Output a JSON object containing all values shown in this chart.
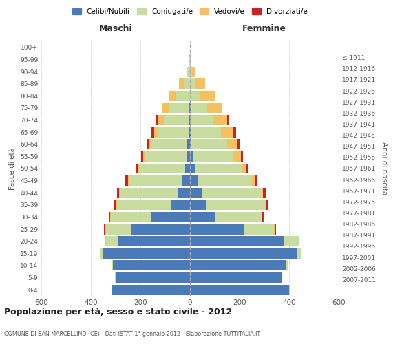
{
  "age_groups": [
    "0-4",
    "5-9",
    "10-14",
    "15-19",
    "20-24",
    "25-29",
    "30-34",
    "35-39",
    "40-44",
    "45-49",
    "50-54",
    "55-59",
    "60-64",
    "65-69",
    "70-74",
    "75-79",
    "80-84",
    "85-89",
    "90-94",
    "95-99",
    "100+"
  ],
  "birth_years": [
    "2007-2011",
    "2002-2006",
    "1997-2001",
    "1992-1996",
    "1987-1991",
    "1982-1986",
    "1977-1981",
    "1972-1976",
    "1967-1971",
    "1962-1966",
    "1957-1961",
    "1952-1956",
    "1947-1951",
    "1942-1946",
    "1937-1941",
    "1932-1936",
    "1927-1931",
    "1922-1926",
    "1917-1921",
    "1912-1916",
    "≤ 1911"
  ],
  "males": {
    "celibi": [
      315,
      300,
      310,
      350,
      290,
      240,
      155,
      75,
      50,
      30,
      20,
      15,
      10,
      5,
      5,
      5,
      0,
      0,
      0,
      0,
      0
    ],
    "coniugati": [
      2,
      2,
      5,
      15,
      50,
      100,
      165,
      220,
      230,
      215,
      185,
      165,
      145,
      125,
      100,
      80,
      55,
      25,
      10,
      2,
      0
    ],
    "vedovi": [
      0,
      0,
      0,
      0,
      2,
      3,
      3,
      5,
      5,
      5,
      5,
      10,
      10,
      15,
      25,
      30,
      30,
      20,
      5,
      1,
      0
    ],
    "divorziati": [
      0,
      0,
      0,
      0,
      2,
      3,
      5,
      8,
      10,
      10,
      8,
      8,
      8,
      10,
      5,
      0,
      0,
      0,
      0,
      0,
      0
    ]
  },
  "females": {
    "nubili": [
      400,
      370,
      390,
      430,
      380,
      220,
      100,
      65,
      50,
      30,
      20,
      10,
      5,
      5,
      5,
      5,
      0,
      0,
      0,
      0,
      0
    ],
    "coniugate": [
      3,
      3,
      8,
      20,
      60,
      120,
      190,
      240,
      240,
      220,
      190,
      165,
      145,
      120,
      90,
      65,
      40,
      20,
      8,
      2,
      0
    ],
    "vedove": [
      0,
      0,
      0,
      0,
      1,
      2,
      2,
      3,
      5,
      10,
      15,
      30,
      40,
      50,
      55,
      60,
      60,
      40,
      15,
      3,
      0
    ],
    "divorziate": [
      0,
      0,
      0,
      0,
      2,
      5,
      8,
      10,
      12,
      12,
      10,
      10,
      10,
      10,
      5,
      0,
      0,
      0,
      0,
      0,
      0
    ]
  },
  "colors": {
    "celibi": "#4b7ab8",
    "coniugati": "#c8dca0",
    "vedovi": "#f5c060",
    "divorziati": "#cc2222"
  },
  "legend_labels": [
    "Celibi/Nubili",
    "Coniugati/e",
    "Vedovi/e",
    "Divorziati/e"
  ],
  "title": "Popolazione per età, sesso e stato civile - 2012",
  "subtitle": "COMUNE DI SAN MARCELLINO (CE) - Dati ISTAT 1° gennaio 2012 - Elaborazione TUTTITALIA.IT",
  "xlabel_left": "Maschi",
  "xlabel_right": "Femmine",
  "ylabel_left": "Fasce di età",
  "ylabel_right": "Anni di nascita",
  "xlim": 600,
  "background_color": "#ffffff"
}
